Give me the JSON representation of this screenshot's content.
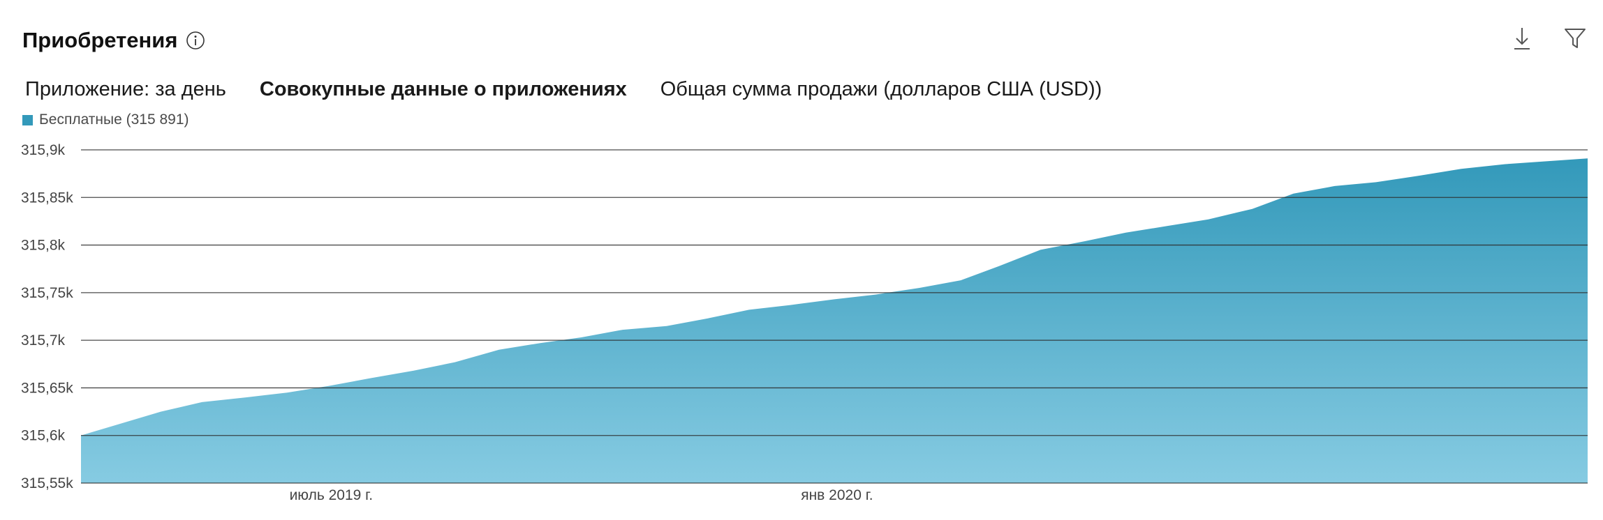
{
  "header": {
    "title": "Приобретения",
    "info_icon": "info-icon",
    "download_icon": "download-icon",
    "filter_icon": "filter-icon"
  },
  "tabs": [
    {
      "label": "Приложение: за день",
      "active": false
    },
    {
      "label": "Совокупные данные о приложениях",
      "active": true
    },
    {
      "label": "Общая сумма продажи (долларов США (USD))",
      "active": false
    }
  ],
  "legend": {
    "label": "Бесплатные (315 891)",
    "color": "#3399ba"
  },
  "chart_data": {
    "type": "area",
    "title": "",
    "xlabel": "",
    "ylabel": "",
    "y_ticks": [
      "315,55k",
      "315,6k",
      "315,65k",
      "315,7k",
      "315,75k",
      "315,8k",
      "315,85k",
      "315,9k"
    ],
    "ylim": [
      315550,
      315900
    ],
    "x_ticks": [
      "июль 2019 г.",
      "янв 2020 г."
    ],
    "x_range": [
      "2019-04-01",
      "2020-09-30"
    ],
    "grid": true,
    "colors": {
      "top": "#3399ba",
      "bottom": "#86cbe2",
      "grid": "#2b2b2b"
    },
    "series": [
      {
        "name": "Бесплатные (315 891)",
        "points": [
          [
            "2019-04-01",
            315600
          ],
          [
            "2019-04-15",
            315612
          ],
          [
            "2019-04-30",
            315625
          ],
          [
            "2019-05-15",
            315635
          ],
          [
            "2019-05-31",
            315640
          ],
          [
            "2019-06-15",
            315645
          ],
          [
            "2019-06-30",
            315652
          ],
          [
            "2019-07-15",
            315660
          ],
          [
            "2019-07-31",
            315668
          ],
          [
            "2019-08-15",
            315677
          ],
          [
            "2019-08-31",
            315690
          ],
          [
            "2019-09-15",
            315697
          ],
          [
            "2019-09-30",
            315703
          ],
          [
            "2019-10-15",
            315711
          ],
          [
            "2019-10-31",
            315715
          ],
          [
            "2019-11-15",
            315723
          ],
          [
            "2019-11-30",
            315732
          ],
          [
            "2019-12-15",
            315737
          ],
          [
            "2019-12-31",
            315743
          ],
          [
            "2020-01-15",
            315748
          ],
          [
            "2020-01-31",
            315755
          ],
          [
            "2020-02-15",
            315763
          ],
          [
            "2020-02-29",
            315778
          ],
          [
            "2020-03-15",
            315795
          ],
          [
            "2020-03-31",
            315804
          ],
          [
            "2020-04-15",
            315813
          ],
          [
            "2020-04-30",
            315820
          ],
          [
            "2020-05-15",
            315827
          ],
          [
            "2020-05-31",
            315838
          ],
          [
            "2020-06-15",
            315854
          ],
          [
            "2020-06-30",
            315862
          ],
          [
            "2020-07-15",
            315866
          ],
          [
            "2020-07-31",
            315873
          ],
          [
            "2020-08-15",
            315880
          ],
          [
            "2020-08-31",
            315885
          ],
          [
            "2020-09-30",
            315891
          ]
        ]
      }
    ]
  }
}
